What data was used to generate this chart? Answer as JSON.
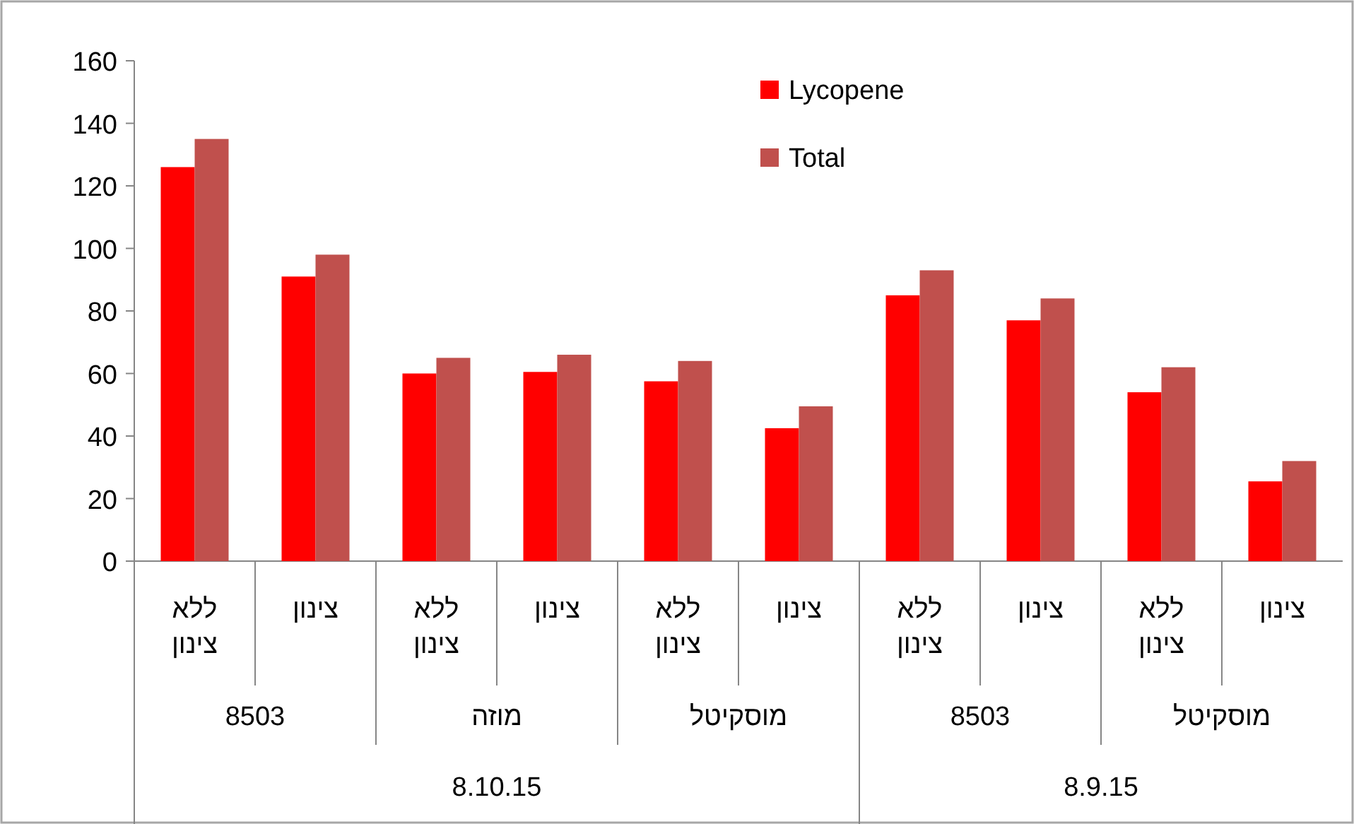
{
  "chart_data": {
    "type": "bar",
    "categories": [
      "ללא צינון",
      "צינון",
      "ללא צינון",
      "צינון",
      "ללא צינון",
      "צינון",
      "ללא צינון",
      "צינון",
      "ללא צינון",
      "צינון"
    ],
    "series": [
      {
        "name": "Lycopene",
        "color": "#ff0000",
        "values": [
          126,
          91,
          60,
          60.5,
          57.5,
          42.5,
          85,
          77,
          54,
          25.5
        ]
      },
      {
        "name": "Total",
        "color": "#c0504d",
        "values": [
          135,
          98,
          65,
          66,
          64,
          49.5,
          93,
          84,
          62,
          32
        ]
      }
    ],
    "annotations": [
      "8503",
      "מוזה",
      "מוסקיטל",
      "8503",
      "מוסקיטל",
      "8.10.15",
      "8.9.15"
    ],
    "ylim": [
      0,
      160
    ],
    "yticks": [
      0,
      20,
      40,
      60,
      80,
      100,
      120,
      140,
      160
    ],
    "legend": "top right"
  }
}
